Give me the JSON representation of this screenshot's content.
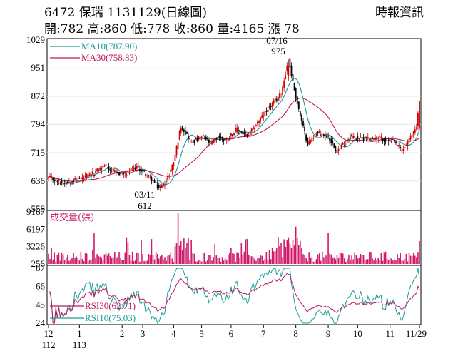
{
  "header": {
    "title": "6472  保瑞 1131129(日線圖)",
    "quote": "開:782 高:860 低:778 收:860 量:4165 漲 78",
    "source": "時報資訊"
  },
  "colors": {
    "up": "#cc0000",
    "down": "#000000",
    "ma10": "#1a9a9a",
    "ma30": "#c0185a",
    "volume": "#d01a6a",
    "rsi30": "#c0185a",
    "rsi10": "#1a9a9a"
  },
  "chart_data": [
    {
      "type": "candlestick",
      "title": "",
      "ylim": [
        558,
        1029
      ],
      "yticks": [
        558,
        636,
        715,
        794,
        872,
        951,
        1029
      ],
      "legend": [
        {
          "label": "MA10(787.90)",
          "color": "#1a9a9a"
        },
        {
          "label": "MA30(758.83)",
          "color": "#c0185a"
        }
      ],
      "annotations": [
        {
          "label_date": "07/16",
          "label_value": "975",
          "value": 975,
          "kind": "high"
        },
        {
          "label_date": "03/11",
          "label_value": "612",
          "value": 612,
          "kind": "low"
        }
      ],
      "anchors": [
        [
          0,
          645
        ],
        [
          10,
          630
        ],
        [
          20,
          640
        ],
        [
          30,
          655
        ],
        [
          38,
          680
        ],
        [
          45,
          660
        ],
        [
          52,
          655
        ],
        [
          60,
          675
        ],
        [
          66,
          655
        ],
        [
          70,
          640
        ],
        [
          75,
          615
        ],
        [
          80,
          635
        ],
        [
          85,
          690
        ],
        [
          90,
          790
        ],
        [
          97,
          745
        ],
        [
          105,
          760
        ],
        [
          110,
          740
        ],
        [
          115,
          760
        ],
        [
          120,
          750
        ],
        [
          128,
          780
        ],
        [
          135,
          760
        ],
        [
          142,
          800
        ],
        [
          150,
          840
        ],
        [
          158,
          880
        ],
        [
          163,
          975
        ],
        [
          168,
          870
        ],
        [
          172,
          800
        ],
        [
          176,
          740
        ],
        [
          182,
          770
        ],
        [
          190,
          760
        ],
        [
          196,
          720
        ],
        [
          205,
          760
        ],
        [
          215,
          755
        ],
        [
          225,
          755
        ],
        [
          235,
          745
        ],
        [
          240,
          720
        ],
        [
          245,
          750
        ],
        [
          250,
          790
        ],
        [
          252,
          860
        ]
      ],
      "last": {
        "open": 782,
        "high": 860,
        "low": 778,
        "close": 860
      },
      "ma10_last": 787.9,
      "ma30_last": 758.83
    },
    {
      "type": "bar",
      "title": "成交量(張)",
      "ylim": [
        256,
        9167
      ],
      "yticks": [
        256,
        3226,
        6197,
        9167
      ],
      "last_volume": 4165
    },
    {
      "type": "line",
      "title": "",
      "ylim": [
        24,
        87
      ],
      "yticks": [
        24,
        45,
        66,
        87
      ],
      "series": [
        {
          "name": "RSI30(62.71)",
          "color": "#c0185a",
          "last": 62.71
        },
        {
          "name": "RSI10(75.03)",
          "color": "#1a9a9a",
          "last": 75.03
        }
      ]
    },
    {
      "type": "axis",
      "x_ticks": [
        {
          "label": "12",
          "sub": "112",
          "index": 0
        },
        {
          "label": "1",
          "sub": "113",
          "index": 21
        },
        {
          "label": "2",
          "sub": "",
          "index": 50
        },
        {
          "label": "3",
          "sub": "",
          "index": 64
        },
        {
          "label": "4",
          "sub": "",
          "index": 85
        },
        {
          "label": "5",
          "sub": "",
          "index": 104
        },
        {
          "label": "6",
          "sub": "",
          "index": 124
        },
        {
          "label": "7",
          "sub": "",
          "index": 146
        },
        {
          "label": "8",
          "sub": "",
          "index": 168
        },
        {
          "label": "9",
          "sub": "",
          "index": 190
        },
        {
          "label": "10",
          "sub": "",
          "index": 210
        },
        {
          "label": "11",
          "sub": "",
          "index": 232
        },
        {
          "label": "11/29",
          "sub": "",
          "index": 252
        }
      ],
      "n_days": 253
    }
  ]
}
